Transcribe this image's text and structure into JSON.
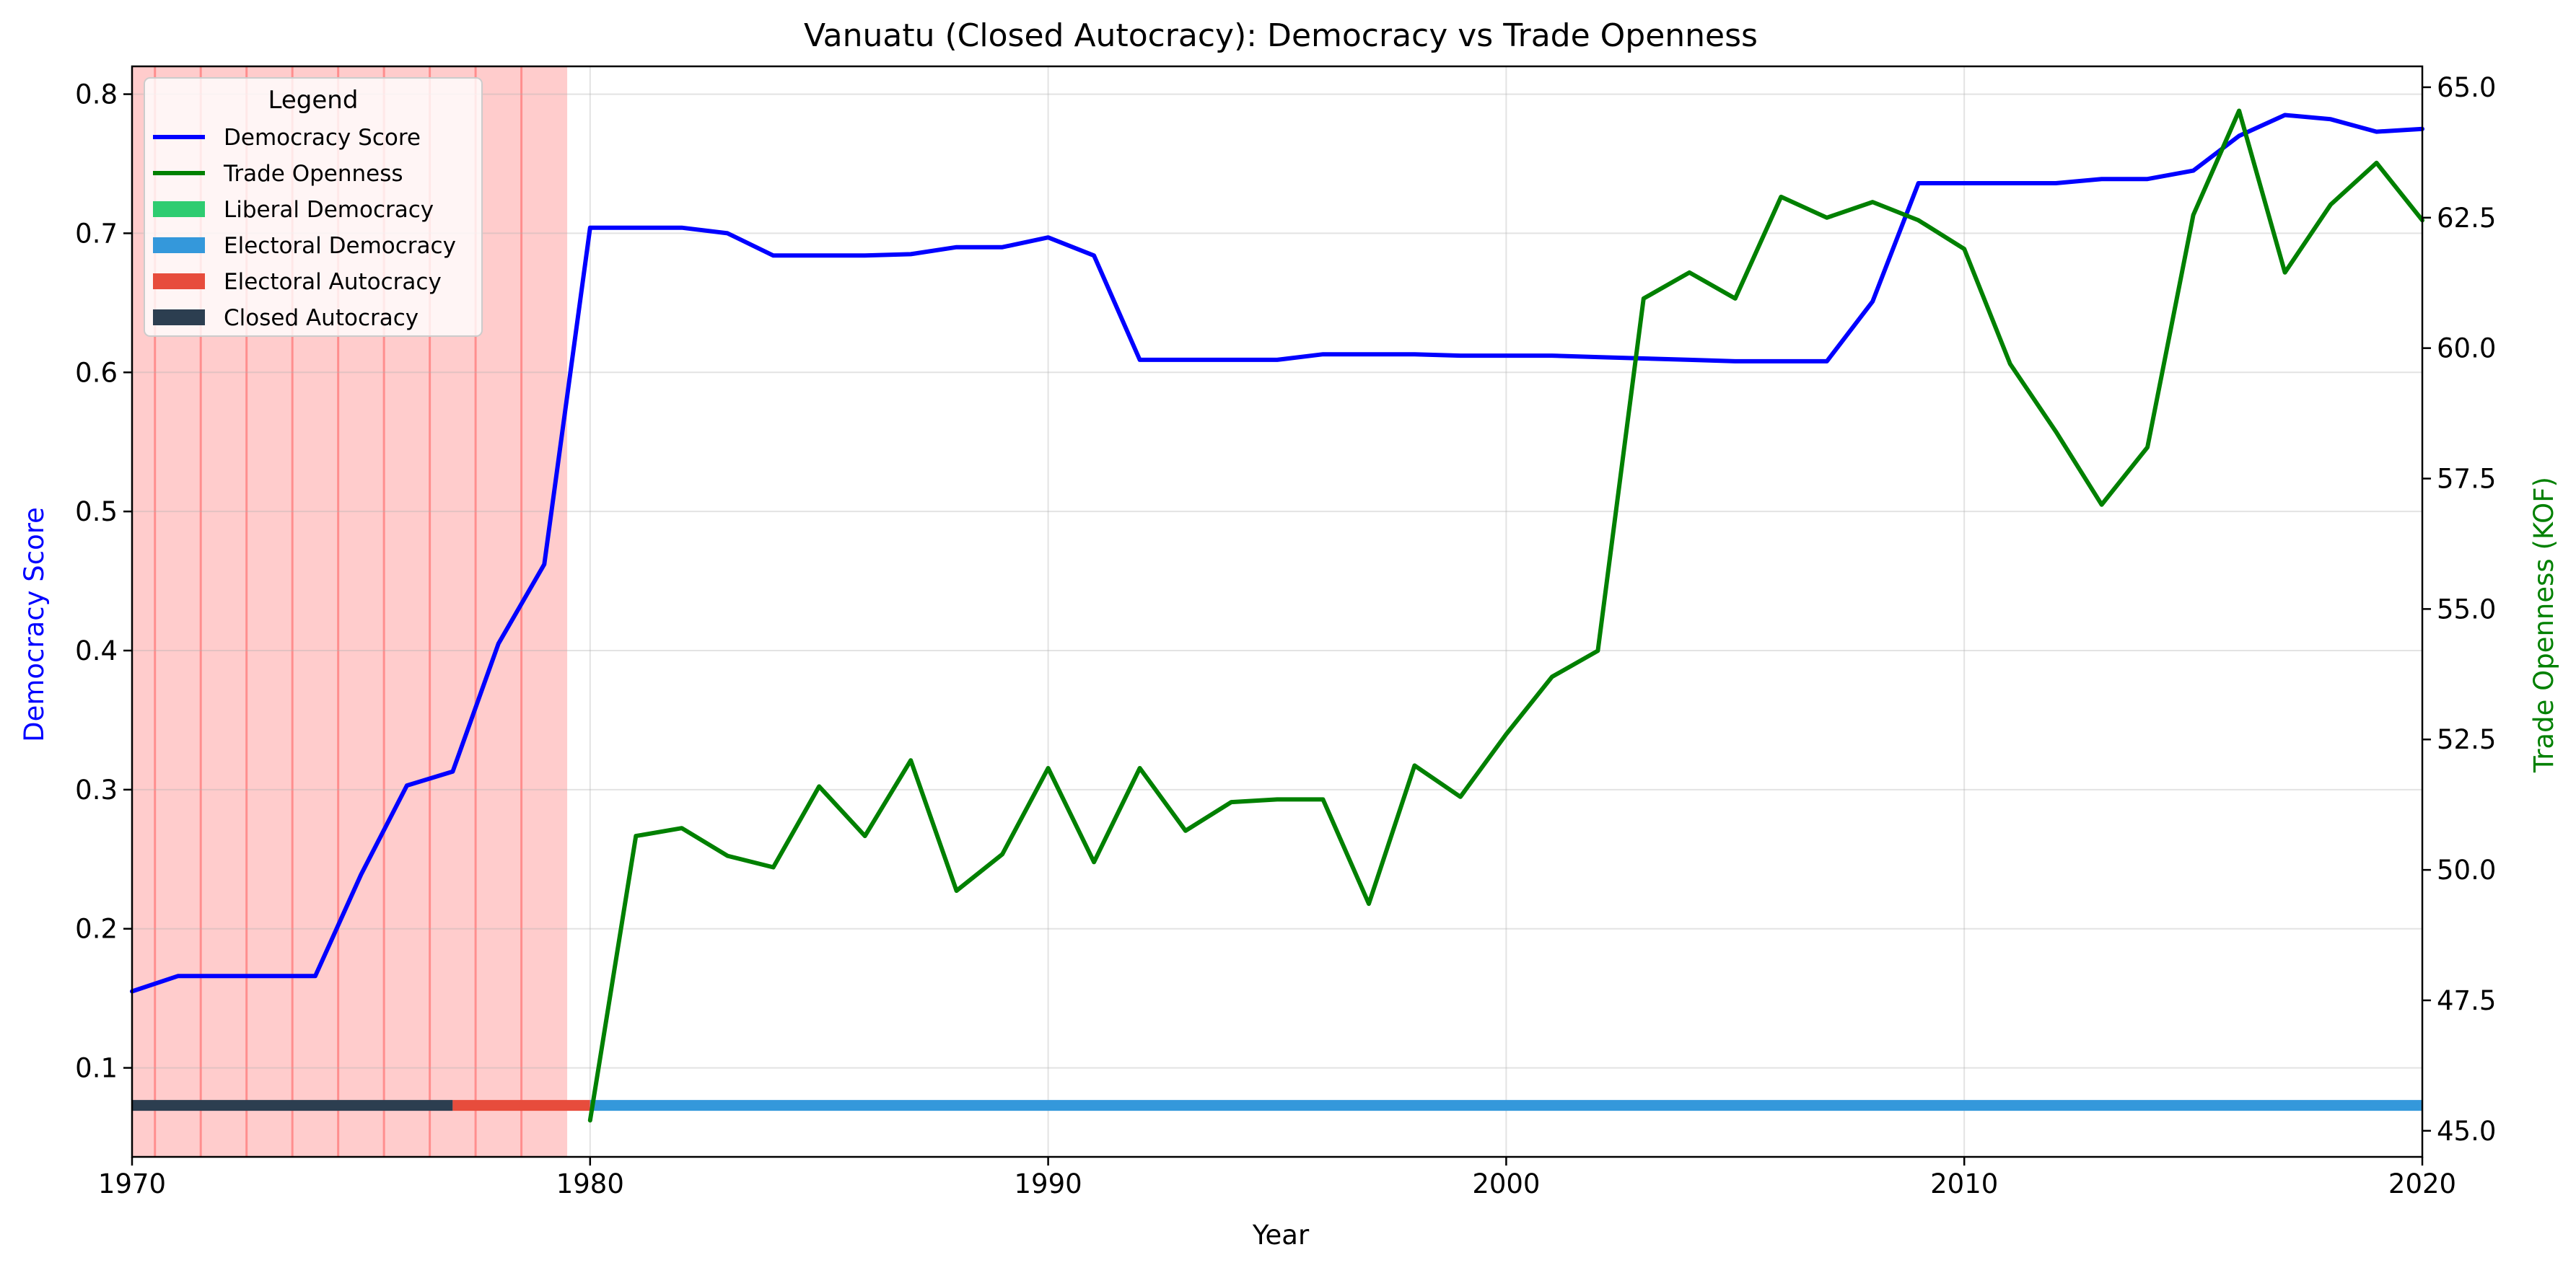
{
  "chart_data": {
    "type": "line",
    "title": "Vanuatu (Closed Autocracy): Democracy vs Trade Openness",
    "xlabel": "Year",
    "ylabel_left": "Democracy Score",
    "ylabel_right": "Trade Openness (KOF)",
    "xlim": [
      1970,
      2020
    ],
    "ylim_left": [
      0.036,
      0.82
    ],
    "ylim_right": [
      44.5,
      65.4
    ],
    "x_ticks": [
      "1970",
      "1980",
      "1990",
      "2000",
      "2010",
      "2020"
    ],
    "y_left_ticks": [
      "0.1",
      "0.2",
      "0.3",
      "0.4",
      "0.5",
      "0.6",
      "0.7",
      "0.8"
    ],
    "y_right_ticks": [
      "45.0",
      "47.5",
      "50.0",
      "52.5",
      "55.0",
      "57.5",
      "60.0",
      "62.5",
      "65.0"
    ],
    "grid": true,
    "colors": {
      "democracy": "#0000ff",
      "trade": "#008000",
      "left_axis_label": "#0000ff",
      "right_axis_label": "#008000",
      "shade": "#ff0000",
      "liberal_democracy": "#2ecc71",
      "electoral_democracy": "#3498db",
      "electoral_autocracy": "#e74c3c",
      "closed_autocracy": "#2c3e50"
    },
    "shaded_period": [
      1970,
      1979.5
    ],
    "shade_lines": [
      1970.5,
      1971.5,
      1972.5,
      1973.5,
      1974.5,
      1975.5,
      1976.5,
      1977.5,
      1978.5
    ],
    "regime_band_y": 0.073,
    "regime_segments": [
      {
        "regime": "closed_autocracy",
        "start": 1970,
        "end": 1977
      },
      {
        "regime": "electoral_autocracy",
        "start": 1977,
        "end": 1980
      },
      {
        "regime": "electoral_democracy",
        "start": 1980,
        "end": 2020
      }
    ],
    "series": [
      {
        "name": "Democracy Score",
        "axis": "left",
        "x": [
          1970,
          1971,
          1972,
          1973,
          1974,
          1975,
          1976,
          1977,
          1978,
          1979,
          1980,
          1981,
          1982,
          1983,
          1984,
          1985,
          1986,
          1987,
          1988,
          1989,
          1990,
          1991,
          1992,
          1993,
          1994,
          1995,
          1996,
          1997,
          1998,
          1999,
          2000,
          2001,
          2002,
          2003,
          2004,
          2005,
          2006,
          2007,
          2008,
          2009,
          2010,
          2011,
          2012,
          2013,
          2014,
          2015,
          2016,
          2017,
          2018,
          2019,
          2020
        ],
        "values": [
          0.155,
          0.166,
          0.166,
          0.166,
          0.166,
          0.239,
          0.303,
          0.313,
          0.405,
          0.462,
          0.704,
          0.704,
          0.704,
          0.7,
          0.684,
          0.684,
          0.684,
          0.685,
          0.69,
          0.69,
          0.697,
          0.684,
          0.609,
          0.609,
          0.609,
          0.609,
          0.613,
          0.613,
          0.613,
          0.612,
          0.612,
          0.612,
          0.611,
          0.61,
          0.609,
          0.608,
          0.608,
          0.608,
          0.651,
          0.736,
          0.736,
          0.736,
          0.736,
          0.739,
          0.739,
          0.745,
          0.77,
          0.785,
          0.782,
          0.773,
          0.775
        ]
      },
      {
        "name": "Trade Openness",
        "axis": "right",
        "x": [
          1980,
          1981,
          1982,
          1983,
          1984,
          1985,
          1986,
          1987,
          1988,
          1989,
          1990,
          1991,
          1992,
          1993,
          1994,
          1995,
          1996,
          1997,
          1998,
          1999,
          2000,
          2001,
          2002,
          2003,
          2004,
          2005,
          2006,
          2007,
          2008,
          2009,
          2010,
          2011,
          2012,
          2013,
          2014,
          2015,
          2016,
          2017,
          2018,
          2019,
          2020
        ],
        "values": [
          45.2,
          50.65,
          50.8,
          50.27,
          50.05,
          51.6,
          50.65,
          52.1,
          49.6,
          50.3,
          51.95,
          50.15,
          51.95,
          50.75,
          51.3,
          51.35,
          51.35,
          49.35,
          52.0,
          51.4,
          52.6,
          53.7,
          54.2,
          60.95,
          61.45,
          60.95,
          62.9,
          62.5,
          62.8,
          62.45,
          61.9,
          59.7,
          58.4,
          57.0,
          58.1,
          62.55,
          64.55,
          61.45,
          62.75,
          63.55,
          62.45
        ]
      }
    ],
    "legend": {
      "title": "Legend",
      "placement": "top-left",
      "entries": [
        {
          "label": "Democracy Score",
          "kind": "line",
          "color_key": "democracy"
        },
        {
          "label": "Trade Openness",
          "kind": "line",
          "color_key": "trade"
        },
        {
          "label": "Liberal Democracy",
          "kind": "patch",
          "color_key": "liberal_democracy"
        },
        {
          "label": "Electoral Democracy",
          "kind": "patch",
          "color_key": "electoral_democracy"
        },
        {
          "label": "Electoral Autocracy",
          "kind": "patch",
          "color_key": "electoral_autocracy"
        },
        {
          "label": "Closed Autocracy",
          "kind": "patch",
          "color_key": "closed_autocracy"
        }
      ]
    }
  }
}
